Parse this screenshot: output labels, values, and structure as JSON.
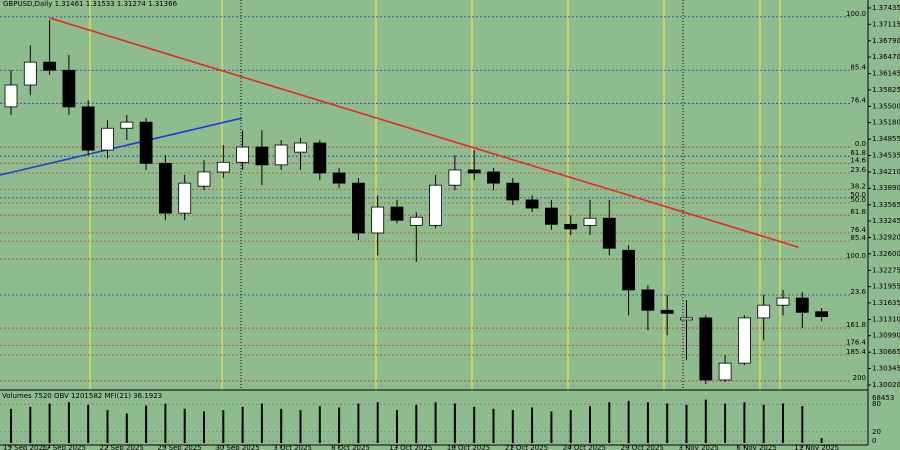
{
  "chart_data": {
    "type": "candlestick",
    "title": "GBPUSD,Daily  1.31461 1.31533 1.31274 1.31366",
    "ylim": [
      1.29922,
      1.37592
    ],
    "yticks": [
      1.37435,
      1.37115,
      {
        "value": 1.3679,
        "label": "1.36790"
      },
      {
        "value": 1.3647,
        "label": "1.36470"
      },
      1.36145,
      1.35825,
      {
        "value": 1.355,
        "label": "1.35500"
      },
      {
        "value": 1.3518,
        "label": "1.35180"
      },
      1.34855,
      1.34535,
      {
        "value": 1.3421,
        "label": "1.34210"
      },
      {
        "value": 1.3389,
        "label": "1.33890"
      },
      1.33565,
      1.33245,
      {
        "value": 1.3292,
        "label": "1.32920"
      },
      {
        "value": 1.326,
        "label": "1.32600"
      },
      1.32275,
      1.31955,
      1.31635,
      {
        "value": 1.3131,
        "label": "1.31310"
      },
      {
        "value": 1.3099,
        "label": "1.30990"
      },
      1.30665,
      1.30345,
      {
        "value": 1.3002,
        "label": "1.30020"
      }
    ],
    "xticks": [
      {
        "value": 0,
        "label": "15 Sep 2025"
      },
      {
        "value": 2,
        "label": "17 Sep 2025"
      },
      {
        "value": 5,
        "label": "22 Sep 2025"
      },
      {
        "value": 8,
        "label": "25 Sep 2025"
      },
      {
        "value": 11,
        "label": "30 Sep 2025"
      },
      {
        "value": 14,
        "label": "3 Oct 2025"
      },
      {
        "value": 17,
        "label": "8 Oct 2025"
      },
      {
        "value": 20,
        "label": "13 Oct 2025"
      },
      {
        "value": 23,
        "label": "16 Oct 2025"
      },
      {
        "value": 26,
        "label": "21 Oct 2025"
      },
      {
        "value": 29,
        "label": "24 Oct 2025"
      },
      {
        "value": 32,
        "label": "29 Oct 2025"
      },
      {
        "value": 35,
        "label": "3 Nov 2025"
      },
      {
        "value": 38,
        "label": "6 Nov 2025"
      },
      {
        "value": 41,
        "label": "11 Nov 2025"
      }
    ],
    "open": [
      1.3549,
      1.3592,
      1.3637,
      1.3621,
      1.3549,
      1.3464,
      1.3507,
      1.3519,
      1.3438,
      1.334,
      1.3393,
      1.3421,
      1.344,
      1.347,
      1.3435,
      1.346,
      1.3478,
      1.3419,
      1.3399,
      1.3301,
      1.3352,
      1.3316,
      1.3316,
      1.3395,
      1.3425,
      1.3421,
      1.3399,
      1.3366,
      1.335,
      1.3318,
      1.3316,
      1.333,
      1.3267,
      1.3189,
      1.3149,
      1.313,
      1.3134,
      1.3012,
      1.3045,
      1.3134,
      1.3159,
      1.3173,
      1.31461
    ],
    "high": [
      1.3621,
      1.367,
      1.372,
      1.3651,
      1.3562,
      1.3523,
      1.3533,
      1.3527,
      1.3454,
      1.3415,
      1.3444,
      1.3474,
      1.3503,
      1.3503,
      1.3484,
      1.3488,
      1.3484,
      1.3429,
      1.3409,
      1.3375,
      1.3366,
      1.3342,
      1.3415,
      1.3454,
      1.3464,
      1.3429,
      1.3409,
      1.3375,
      1.3366,
      1.3336,
      1.3366,
      1.3366,
      1.3277,
      1.3198,
      1.3179,
      1.3169,
      1.3139,
      1.3061,
      1.3139,
      1.3179,
      1.3189,
      1.3185,
      1.31533
    ],
    "low": [
      1.3533,
      1.3572,
      1.3612,
      1.3533,
      1.3454,
      1.3448,
      1.3484,
      1.3425,
      1.3326,
      1.3326,
      1.3385,
      1.3409,
      1.3425,
      1.3395,
      1.3425,
      1.3425,
      1.3405,
      1.3389,
      1.3287,
      1.3257,
      1.332,
      1.3244,
      1.331,
      1.3385,
      1.3405,
      1.3385,
      1.3356,
      1.3342,
      1.3307,
      1.3297,
      1.3297,
      1.3257,
      1.3139,
      1.311,
      1.31,
      1.3051,
      1.3004,
      1.3008,
      1.3041,
      1.309,
      1.3139,
      1.3114,
      1.31274
    ],
    "close": [
      1.3592,
      1.3637,
      1.3621,
      1.3549,
      1.3464,
      1.3507,
      1.3519,
      1.3438,
      1.334,
      1.3399,
      1.3421,
      1.344,
      1.347,
      1.3435,
      1.3474,
      1.3478,
      1.3419,
      1.3399,
      1.3301,
      1.3352,
      1.3326,
      1.3332,
      1.3395,
      1.3425,
      1.3419,
      1.3399,
      1.3366,
      1.335,
      1.3318,
      1.3309,
      1.333,
      1.3271,
      1.3189,
      1.3149,
      1.3143,
      1.3134,
      1.3012,
      1.3045,
      1.3134,
      1.3159,
      1.3173,
      1.3145,
      1.31366
    ],
    "up_color": "#ffffff",
    "down_color": "#000000",
    "levels": [
      {
        "label": "100.0",
        "value": 1.3726,
        "color": "#1e3cc8"
      },
      {
        "label": "85.4",
        "value": 1.3621,
        "color": "#1e3cc8"
      },
      {
        "label": "76.4",
        "value": 1.3556,
        "color": "#1e3cc8"
      },
      {
        "label": "0.0",
        "value": 1.347,
        "color": "#d23c1e"
      },
      {
        "label": "61.8",
        "value": 1.3452,
        "color": "#1e3cc8"
      },
      {
        "label": "14.6",
        "value": 1.3438,
        "color": "#d23c1e"
      },
      {
        "label": "23.6",
        "value": 1.3419,
        "color": "#d23c1e"
      },
      {
        "label": "38.2",
        "value": 1.3387,
        "color": "#d23c1e"
      },
      {
        "label": "50.0",
        "value": 1.337,
        "color": "#1e3cc8"
      },
      {
        "label": "50.0",
        "value": 1.336,
        "color": "#d23c1e"
      },
      {
        "label": "61.8",
        "value": 1.3336,
        "color": "#d23c1e"
      },
      {
        "label": "76.4",
        "value": 1.3301,
        "color": "#d23c1e"
      },
      {
        "label": "85.4",
        "value": 1.3285,
        "color": "#d23c1e"
      },
      {
        "label": "100.0",
        "value": 1.325,
        "color": "#d23c1e"
      },
      {
        "label": "23.6",
        "value": 1.3179,
        "color": "#1e3cc8"
      },
      {
        "label": "161.8",
        "value": 1.3114,
        "color": "#d23c1e"
      },
      {
        "label": "176.4",
        "value": 1.308,
        "color": "#d23c1e"
      },
      {
        "label": "185.4",
        "value": 1.3061,
        "color": "#d23c1e"
      },
      {
        "label": "200",
        "value": 1.301,
        "color": "#d23c1e"
      }
    ],
    "trendlines": [
      {
        "color": "#e8281e",
        "x": [
          2,
          40.8
        ],
        "y": [
          1.3724,
          1.3273
        ]
      },
      {
        "color": "#1e3cd2",
        "x": [
          -0.57,
          11.97
        ],
        "y": [
          1.3415,
          1.3527
        ]
      }
    ],
    "volume": {
      "title": "Volumes 7520 OBV 1201582 MFI(21) 36.1923",
      "values": [
        52000,
        55000,
        60000,
        62000,
        58000,
        50000,
        45000,
        57000,
        60000,
        52000,
        48000,
        50000,
        55000,
        60000,
        52000,
        50000,
        56000,
        54000,
        60000,
        62000,
        50000,
        58000,
        62000,
        60000,
        55000,
        52000,
        50000,
        54000,
        48000,
        50000,
        56000,
        62000,
        64000,
        62000,
        60000,
        58000,
        66000,
        60000,
        62000,
        58000,
        60000,
        56000,
        7520
      ],
      "ylim": [
        0,
        68453
      ],
      "yticks": [
        68453
      ]
    },
    "mfi": {
      "ylim": [
        0,
        100
      ],
      "yticks": [
        80,
        20,
        0
      ],
      "color": "#c83c28"
    }
  }
}
